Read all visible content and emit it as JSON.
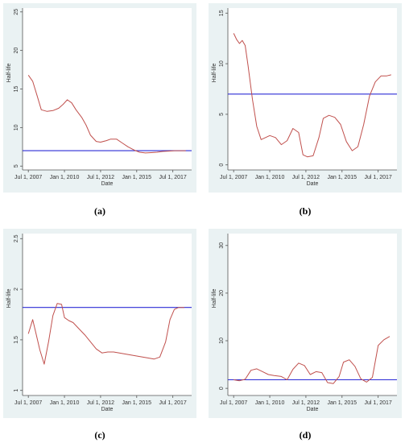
{
  "chart_data": [
    {
      "type": "line",
      "panel": "(a)",
      "xlabel": "Date",
      "ylabel": "Half-life",
      "x_ticks": [
        "Jul 1, 2007",
        "Jan 1, 2010",
        "Jul 1, 2012",
        "Jan 1, 2015",
        "Jul 1, 2017"
      ],
      "y_ticks": [
        5,
        10,
        15,
        20,
        25
      ],
      "ylim": [
        4.5,
        25.5
      ],
      "xlim": [
        2007.1,
        2018.8
      ],
      "series": [
        {
          "x": [
            2007.5,
            2007.8,
            2008.1,
            2008.4,
            2008.8,
            2009.2,
            2009.6,
            2009.9,
            2010.2,
            2010.5,
            2010.8,
            2011.2,
            2011.5,
            2011.8,
            2012.2,
            2012.5,
            2012.9,
            2013.2,
            2013.6,
            2014.0,
            2014.4,
            2014.8,
            2015.2,
            2015.6,
            2016.0,
            2016.4,
            2016.8,
            2017.2,
            2017.6,
            2018.0,
            2018.4
          ],
          "y": [
            16.8,
            16.0,
            14.2,
            12.3,
            12.1,
            12.2,
            12.5,
            13.0,
            13.6,
            13.2,
            12.3,
            11.3,
            10.3,
            9.0,
            8.2,
            8.1,
            8.3,
            8.5,
            8.5,
            8.0,
            7.5,
            7.1,
            6.8,
            6.7,
            6.75,
            6.8,
            6.9,
            6.95,
            7.0,
            7.0,
            7.0
          ]
        }
      ],
      "hline": 7.0
    },
    {
      "type": "line",
      "panel": "(b)",
      "xlabel": "Date",
      "ylabel": "Half-life",
      "x_ticks": [
        "Jul 1, 2007",
        "Jan 1, 2010",
        "Jul 1, 2012",
        "Jan 1, 2015",
        "Jul 1, 2017"
      ],
      "y_ticks": [
        0,
        5,
        10,
        15
      ],
      "ylim": [
        -0.5,
        15.5
      ],
      "xlim": [
        2007.1,
        2018.8
      ],
      "series": [
        {
          "x": [
            2007.5,
            2007.7,
            2007.9,
            2008.1,
            2008.3,
            2008.5,
            2008.8,
            2009.1,
            2009.4,
            2009.7,
            2010.0,
            2010.4,
            2010.8,
            2011.2,
            2011.6,
            2012.0,
            2012.3,
            2012.6,
            2013.0,
            2013.4,
            2013.7,
            2014.1,
            2014.5,
            2014.9,
            2015.3,
            2015.7,
            2016.1,
            2016.5,
            2016.9,
            2017.3,
            2017.7,
            2018.1,
            2018.4
          ],
          "y": [
            13.0,
            12.4,
            12.0,
            12.3,
            11.8,
            9.8,
            6.5,
            3.8,
            2.5,
            2.7,
            2.9,
            2.7,
            2.0,
            2.4,
            3.6,
            3.2,
            1.0,
            0.8,
            0.9,
            2.7,
            4.6,
            4.9,
            4.7,
            4.0,
            2.3,
            1.4,
            1.8,
            4.0,
            6.8,
            8.2,
            8.8,
            8.8,
            8.9
          ]
        }
      ],
      "hline": 7.0
    },
    {
      "type": "line",
      "panel": "(c)",
      "xlabel": "Date",
      "ylabel": "Half-life",
      "x_ticks": [
        "Jul 1, 2007",
        "Jan 1, 2010",
        "Jul 1, 2012",
        "Jan 1, 2015",
        "Jul 1, 2017"
      ],
      "y_ticks": [
        1,
        1.5,
        2,
        2.5
      ],
      "ylim": [
        0.95,
        2.55
      ],
      "xlim": [
        2007.1,
        2018.8
      ],
      "series": [
        {
          "x": [
            2007.5,
            2007.8,
            2008.0,
            2008.3,
            2008.6,
            2008.9,
            2009.2,
            2009.5,
            2009.8,
            2010.0,
            2010.3,
            2010.6,
            2011.0,
            2011.4,
            2011.8,
            2012.2,
            2012.6,
            2013.0,
            2013.4,
            2013.8,
            2014.2,
            2014.6,
            2015.0,
            2015.4,
            2015.8,
            2016.2,
            2016.6,
            2017.0,
            2017.3,
            2017.6,
            2017.9,
            2018.3
          ],
          "y": [
            1.56,
            1.7,
            1.58,
            1.4,
            1.26,
            1.48,
            1.74,
            1.86,
            1.85,
            1.72,
            1.69,
            1.67,
            1.61,
            1.55,
            1.48,
            1.41,
            1.37,
            1.38,
            1.38,
            1.37,
            1.36,
            1.35,
            1.34,
            1.33,
            1.32,
            1.31,
            1.33,
            1.48,
            1.7,
            1.8,
            1.82,
            1.82
          ]
        }
      ],
      "hline": 1.82
    },
    {
      "type": "line",
      "panel": "(d)",
      "xlabel": "Date",
      "ylabel": "Half-life",
      "x_ticks": [
        "Jul 1, 2007",
        "Jan 1, 2010",
        "Jul 1, 2012",
        "Jan 1, 2015",
        "Jul 1, 2017"
      ],
      "y_ticks": [
        0,
        10,
        20,
        30
      ],
      "ylim": [
        -1.5,
        32.5
      ],
      "xlim": [
        2007.1,
        2018.8
      ],
      "series": [
        {
          "x": [
            2007.5,
            2007.9,
            2008.3,
            2008.7,
            2009.1,
            2009.5,
            2009.9,
            2010.3,
            2010.8,
            2011.2,
            2011.6,
            2012.0,
            2012.4,
            2012.8,
            2013.2,
            2013.6,
            2014.0,
            2014.4,
            2014.8,
            2015.1,
            2015.5,
            2015.9,
            2016.3,
            2016.7,
            2017.1,
            2017.5,
            2017.9,
            2018.3
          ],
          "y": [
            1.8,
            1.6,
            1.9,
            3.8,
            4.1,
            3.5,
            2.9,
            2.7,
            2.5,
            1.8,
            4.0,
            5.3,
            4.8,
            2.9,
            3.5,
            3.3,
            1.2,
            1.0,
            2.5,
            5.5,
            6.0,
            4.6,
            2.0,
            1.3,
            2.3,
            9.0,
            10.2,
            10.9
          ]
        }
      ],
      "hline": 1.8
    }
  ],
  "colors": {
    "panel_bg": "#eaf2f3",
    "line": "#c0504d",
    "hline": "#2b2bd6",
    "axis": "#555555"
  }
}
